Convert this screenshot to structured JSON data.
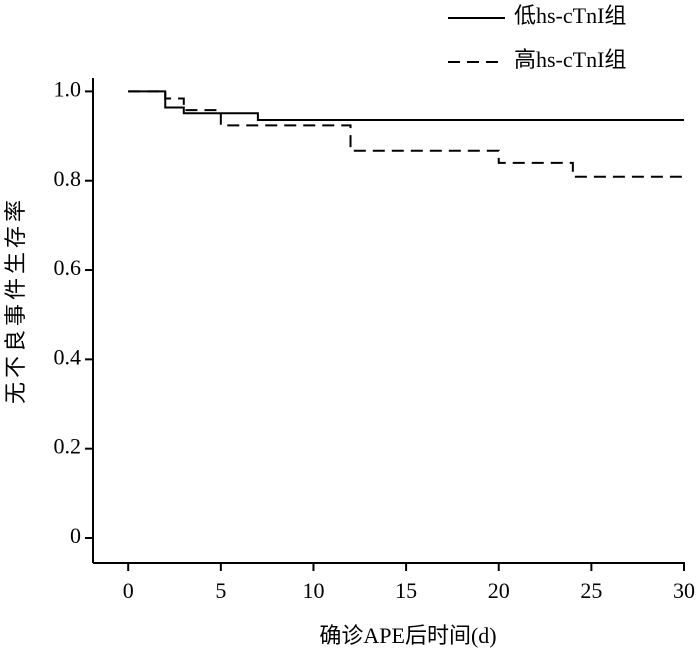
{
  "chart_data": {
    "type": "step",
    "xlabel": "确诊APE后时间(d)",
    "ylabel": "无不良事件生存率",
    "xlim": [
      -1.9,
      30
    ],
    "ylim": [
      -0.056,
      1.03
    ],
    "xticks": [
      0,
      5,
      10,
      15,
      20,
      25,
      30
    ],
    "yticks": [
      0,
      0.2,
      0.4,
      0.6,
      0.8,
      {
        "value": 1,
        "label": "1.0"
      }
    ],
    "legend": "top-right",
    "series": [
      {
        "name": "低hs-cTnI组",
        "color": "#000000",
        "dash": "solid",
        "x": [
          0,
          2,
          3,
          7,
          30
        ],
        "values": [
          1,
          0.964,
          0.951,
          0.936,
          0.936
        ]
      },
      {
        "name": "高hs-cTnI组",
        "color": "#000000",
        "dash": "dashed",
        "x": [
          0,
          2,
          3,
          5,
          12,
          20,
          24,
          30
        ],
        "values": [
          1,
          0.984,
          0.958,
          0.924,
          0.867,
          0.84,
          0.809,
          0.809
        ]
      }
    ]
  }
}
